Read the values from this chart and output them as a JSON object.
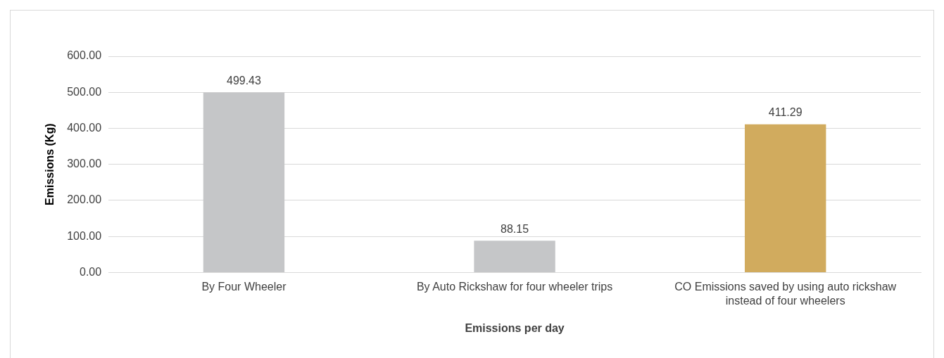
{
  "chart_data": {
    "type": "bar",
    "xlabel": "Emissions per day",
    "ylabel": "Emissions (Kg)",
    "categories": [
      "By Four Wheeler",
      "By Auto Rickshaw for four wheeler trips",
      "CO Emissions saved by using auto rickshaw instead of four wheelers"
    ],
    "values": [
      499.43,
      88.15,
      411.29
    ],
    "colors": [
      "#c5c6c8",
      "#c5c6c8",
      "#d1ab5e"
    ],
    "ylim": [
      0,
      600
    ],
    "yticks": [
      {
        "value": 0,
        "label": "0.00"
      },
      {
        "value": 100,
        "label": "100.00"
      },
      {
        "value": 200,
        "label": "200.00"
      },
      {
        "value": 300,
        "label": "300.00"
      },
      {
        "value": 400,
        "label": "400.00"
      },
      {
        "value": 500,
        "label": "500.00"
      },
      {
        "value": 600,
        "label": "600.00"
      }
    ],
    "grid": "y",
    "data_labels": true,
    "legend": false
  }
}
